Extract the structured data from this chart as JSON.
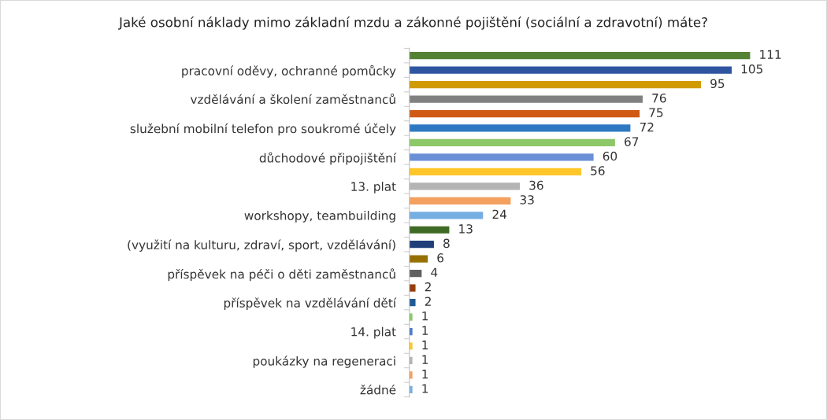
{
  "chart_data": {
    "type": "bar",
    "orientation": "horizontal",
    "title": "Jaké osobní náklady mimo základní mzdu a zákonné pojištění (sociální a zdravotní) máte?",
    "categories": [
      null,
      "pracovní oděvy, ochranné pomůcky",
      null,
      "vzdělávání a školení zaměstnanců",
      null,
      "služební mobilní telefon pro soukromé účely",
      null,
      "důchodové připojištění",
      null,
      "13. plat",
      null,
      "workshopy, teambuilding",
      null,
      "(využití na kulturu, zdraví, sport, vzdělávání)",
      null,
      "příspěvek na péči o děti zaměstnanců",
      null,
      "příspěvek na vzdělávání dětí",
      null,
      "14. plat",
      null,
      "poukázky na regeneraci",
      null,
      "žádné"
    ],
    "values": [
      111,
      105,
      95,
      76,
      75,
      72,
      67,
      60,
      56,
      36,
      33,
      24,
      13,
      8,
      6,
      4,
      2,
      2,
      1,
      1,
      1,
      1,
      1,
      1
    ],
    "colors": [
      "#548235",
      "#2f55a0",
      "#d09a00",
      "#808080",
      "#d05a14",
      "#2e78c2",
      "#8cc768",
      "#6b8fd6",
      "#ffc629",
      "#b4b4b4",
      "#f4a05e",
      "#76aee2",
      "#3f6a25",
      "#203e78",
      "#967000",
      "#606060",
      "#94400c",
      "#1f5a94",
      "#8cc768",
      "#4a78d0",
      "#ffc629",
      "#b4b4b4",
      "#f4a05e",
      "#76aee2"
    ],
    "data_labels": true
  }
}
